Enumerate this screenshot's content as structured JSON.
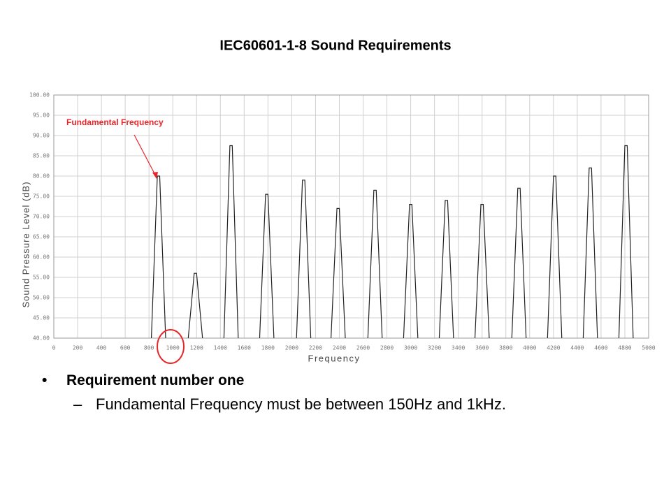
{
  "chart_data": {
    "type": "line",
    "title": "IEC60601-1-8 Sound Requirements",
    "x_label": "Frequency",
    "y_label": "Sound Pressure Level (dB)",
    "annotation": "Fundamental Frequency",
    "xlim": [
      0,
      5000
    ],
    "ylim": [
      40,
      100
    ],
    "xticks": [
      0,
      200,
      400,
      600,
      800,
      1000,
      1200,
      1400,
      1600,
      1800,
      2000,
      2200,
      2400,
      2600,
      2800,
      3000,
      3200,
      3400,
      3600,
      3800,
      4000,
      4200,
      4400,
      4600,
      4800,
      5000
    ],
    "yticks": [
      {
        "value": 40,
        "label": "40.00"
      },
      {
        "value": 45,
        "label": "45.00"
      },
      {
        "value": 50,
        "label": "50.00"
      },
      {
        "value": 55,
        "label": "55.00"
      },
      {
        "value": 60,
        "label": "60.00"
      },
      {
        "value": 65,
        "label": "65.00"
      },
      {
        "value": 70,
        "label": "70.00"
      },
      {
        "value": 75,
        "label": "75.00"
      },
      {
        "value": 80,
        "label": "80.00"
      },
      {
        "value": 85,
        "label": "85.00"
      },
      {
        "value": 90,
        "label": "90.00"
      },
      {
        "value": 95,
        "label": "95.00"
      },
      {
        "value": 100,
        "label": "100.00"
      }
    ],
    "grid": true,
    "color": "#222222",
    "x": [
      820,
      870,
      890,
      940,
      null,
      1130,
      1180,
      1200,
      1250,
      null,
      1430,
      1480,
      1500,
      1550,
      null,
      1730,
      1780,
      1800,
      1850,
      null,
      2040,
      2090,
      2110,
      2160,
      null,
      2330,
      2380,
      2400,
      2450,
      null,
      2640,
      2690,
      2710,
      2760,
      null,
      2940,
      2990,
      3010,
      3060,
      null,
      3240,
      3290,
      3310,
      3360,
      null,
      3540,
      3590,
      3610,
      3660,
      null,
      3850,
      3900,
      3920,
      3970,
      null,
      4150,
      4200,
      4220,
      4270,
      null,
      4450,
      4500,
      4520,
      4570,
      null,
      4750,
      4800,
      4820,
      4870
    ],
    "values": [
      40,
      80,
      80,
      40,
      null,
      40,
      56,
      56,
      40,
      null,
      40,
      87.5,
      87.5,
      40,
      null,
      40,
      75.5,
      75.5,
      40,
      null,
      40,
      79,
      79,
      40,
      null,
      40,
      72,
      72,
      40,
      null,
      40,
      76.5,
      76.5,
      40,
      null,
      40,
      73,
      73,
      40,
      null,
      40,
      74,
      74,
      40,
      null,
      40,
      73,
      73,
      40,
      null,
      40,
      77,
      77,
      40,
      null,
      40,
      80,
      80,
      40,
      null,
      40,
      82,
      82,
      40,
      null,
      40,
      87.5,
      87.5,
      40
    ]
  },
  "bullets": [
    {
      "text": "Requirement number one",
      "sub": [
        "Fundamental Frequency must be between 150Hz and 1kHz."
      ]
    }
  ]
}
